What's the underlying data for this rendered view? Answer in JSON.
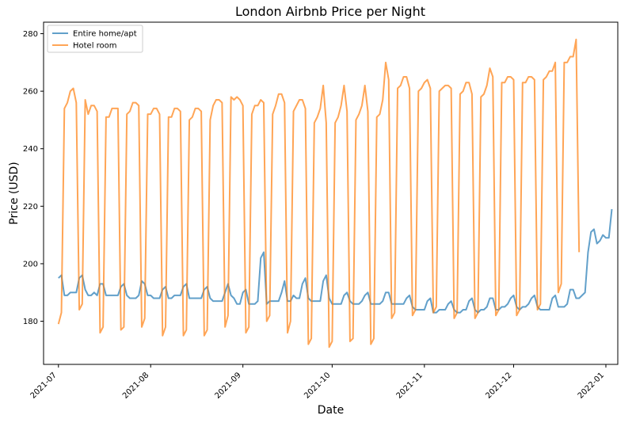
{
  "chart_data": {
    "type": "line",
    "title": "London Airbnb Price per Night",
    "xlabel": "Date",
    "ylabel": "Price (USD)",
    "x_axis": {
      "type": "date",
      "range": [
        "2021-06-26",
        "2022-01-05"
      ],
      "ticks": [
        "2021-07-01",
        "2021-08-01",
        "2021-09-01",
        "2021-10-01",
        "2021-11-01",
        "2021-12-01",
        "2022-01-01"
      ],
      "tick_labels": [
        "2021-07",
        "2021-08",
        "2021-09",
        "2021-10",
        "2021-11",
        "2021-12",
        "2022-01"
      ]
    },
    "y_axis": {
      "range": [
        165,
        284
      ],
      "ticks": [
        180,
        200,
        220,
        240,
        260,
        280
      ],
      "tick_labels": [
        "180",
        "200",
        "220",
        "240",
        "260",
        "280"
      ]
    },
    "grid": false,
    "legend": {
      "position": "top-left"
    },
    "series": [
      {
        "name": "Entire home/apt",
        "color": "#1f77b4",
        "start_date": "2021-07-01",
        "step_days": 1,
        "values": [
          195,
          196,
          189,
          189,
          190,
          190,
          190,
          195,
          196,
          191,
          189,
          189,
          190,
          189,
          193,
          193,
          189,
          189,
          189,
          189,
          189,
          192,
          193,
          189,
          188,
          188,
          188,
          189,
          194,
          193,
          189,
          189,
          188,
          188,
          188,
          191,
          192,
          188,
          188,
          189,
          189,
          189,
          192,
          193,
          188,
          188,
          188,
          188,
          188,
          191,
          192,
          188,
          187,
          187,
          187,
          187,
          190,
          193,
          189,
          188,
          186,
          186,
          190,
          191,
          186,
          186,
          186,
          187,
          202,
          204,
          186,
          187,
          187,
          187,
          187,
          190,
          194,
          187,
          187,
          189,
          188,
          188,
          193,
          195,
          188,
          187,
          187,
          187,
          187,
          194,
          196,
          188,
          186,
          186,
          186,
          186,
          189,
          190,
          187,
          186,
          186,
          186,
          187,
          189,
          190,
          186,
          186,
          186,
          186,
          187,
          190,
          190,
          186,
          186,
          186,
          186,
          186,
          188,
          189,
          185,
          184,
          184,
          184,
          184,
          187,
          188,
          183,
          183,
          184,
          184,
          184,
          186,
          187,
          184,
          183,
          183,
          184,
          184,
          187,
          188,
          184,
          183,
          184,
          184,
          185,
          188,
          188,
          184,
          184,
          185,
          185,
          186,
          188,
          189,
          185,
          184,
          185,
          185,
          186,
          188,
          189,
          185,
          184,
          184,
          184,
          184,
          188,
          189,
          185,
          185,
          185,
          186,
          191,
          191,
          188,
          188,
          189,
          190,
          204,
          211,
          212,
          207,
          208,
          210,
          209,
          209,
          219
        ]
      },
      {
        "name": "Hotel room",
        "color": "#ff7f0e",
        "start_date": "2021-07-01",
        "step_days": 1,
        "values": [
          179,
          183,
          254,
          256,
          260,
          261,
          256,
          184,
          186,
          257,
          252,
          255,
          255,
          253,
          176,
          178,
          251,
          251,
          254,
          254,
          254,
          177,
          178,
          252,
          253,
          256,
          256,
          255,
          178,
          181,
          252,
          252,
          254,
          254,
          252,
          175,
          178,
          251,
          251,
          254,
          254,
          253,
          175,
          177,
          250,
          251,
          254,
          254,
          253,
          175,
          177,
          250,
          255,
          257,
          257,
          256,
          178,
          182,
          258,
          257,
          258,
          257,
          255,
          176,
          178,
          252,
          255,
          255,
          257,
          256,
          180,
          182,
          252,
          255,
          259,
          259,
          256,
          176,
          180,
          253,
          255,
          257,
          257,
          254,
          172,
          174,
          249,
          251,
          254,
          262,
          249,
          171,
          173,
          249,
          251,
          255,
          262,
          253,
          173,
          174,
          250,
          252,
          255,
          262,
          253,
          172,
          174,
          251,
          252,
          257,
          270,
          264,
          181,
          183,
          261,
          262,
          265,
          265,
          261,
          182,
          184,
          260,
          261,
          263,
          264,
          261,
          183,
          185,
          260,
          261,
          262,
          262,
          261,
          181,
          183,
          259,
          260,
          263,
          263,
          259,
          181,
          183,
          258,
          259,
          262,
          268,
          265,
          182,
          184,
          263,
          263,
          265,
          265,
          264,
          182,
          184,
          263,
          263,
          265,
          265,
          264,
          184,
          186,
          264,
          265,
          267,
          267,
          270,
          190,
          193,
          270,
          270,
          272,
          272,
          278,
          204
        ]
      }
    ]
  }
}
